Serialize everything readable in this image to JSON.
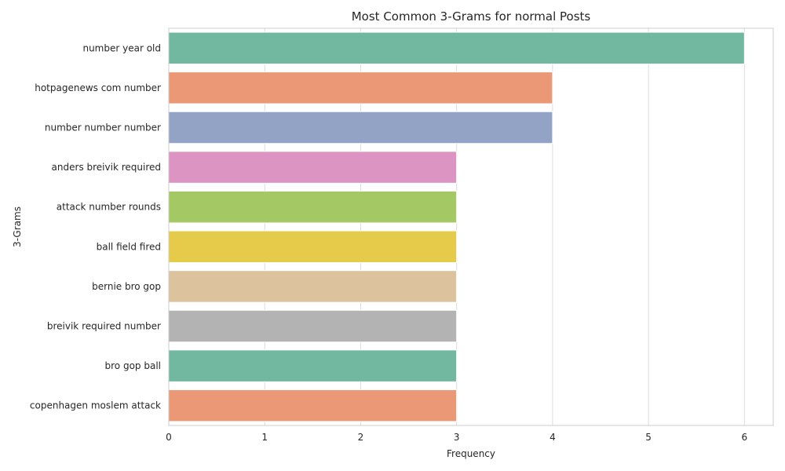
{
  "chart_data": {
    "type": "bar",
    "orientation": "horizontal",
    "title": "Most Common 3-Grams for normal Posts",
    "xlabel": "Frequency",
    "ylabel": "3-Grams",
    "xlim": [
      0,
      6.3
    ],
    "xticks": [
      0,
      1,
      2,
      3,
      4,
      5,
      6
    ],
    "grid": true,
    "categories": [
      "number year old",
      "hotpagenews com number",
      "number number number",
      "anders breivik required",
      "attack number rounds",
      "ball field fired",
      "bernie bro gop",
      "breivik required number",
      "bro gop ball",
      "copenhagen moslem attack"
    ],
    "values": [
      6,
      4,
      4,
      3,
      3,
      3,
      3,
      3,
      3,
      3
    ],
    "colors": [
      "#72b7a0",
      "#ea9875",
      "#93a3c6",
      "#dc95c3",
      "#a3c864",
      "#e6cb4b",
      "#dcc39e",
      "#b3b3b3",
      "#72b7a0",
      "#ea9875"
    ]
  }
}
